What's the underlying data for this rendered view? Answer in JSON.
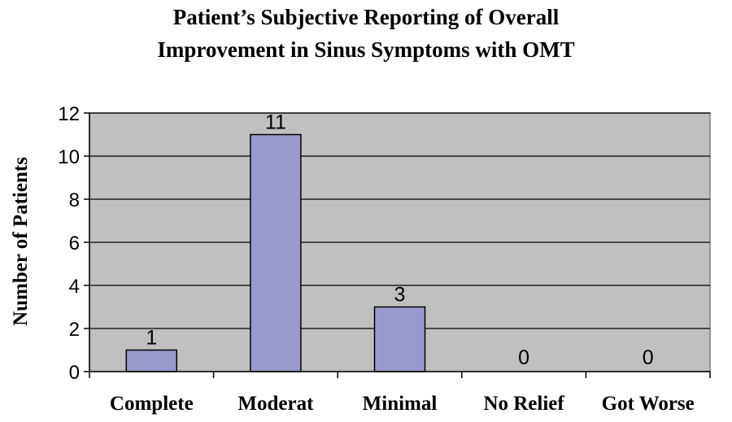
{
  "chart_data": {
    "type": "bar",
    "title_lines": [
      "Patient’s Subjective Reporting of Overall",
      "Improvement in Sinus Symptoms with OMT"
    ],
    "categories": [
      "Complete",
      "Moderat",
      "Minimal",
      "No Relief",
      "Got Worse"
    ],
    "values": [
      1,
      11,
      3,
      0,
      0
    ],
    "data_labels": [
      "1",
      "11",
      "3",
      "0",
      "0"
    ],
    "xlabel": "",
    "ylabel": "Number of Patients",
    "ylim": [
      0,
      12
    ],
    "yticks": [
      0,
      2,
      4,
      6,
      8,
      10,
      12
    ],
    "grid": true,
    "legend": "none",
    "colors": {
      "bar_fill": "#9999cc",
      "plot_background": "#c0c0c0",
      "gridline": "#000000"
    }
  }
}
